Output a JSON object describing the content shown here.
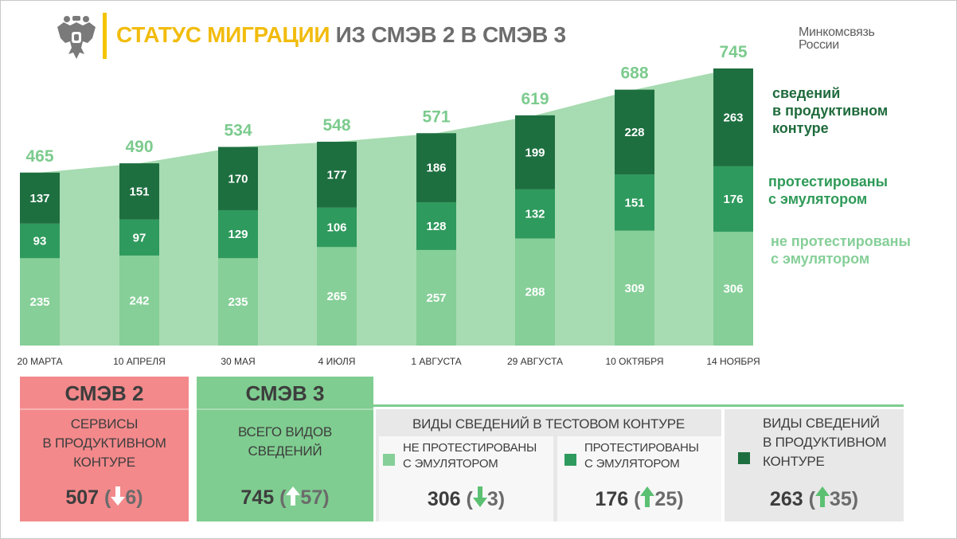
{
  "header": {
    "title_accent": "СТАТУС МИГРАЦИИ",
    "title_rest": "ИЗ СМЭВ 2 В СМЭВ 3",
    "ministry_line1": "Минкомсвязь",
    "ministry_line2": "России"
  },
  "colors": {
    "production": "#1e6f40",
    "tested": "#2f9a5d",
    "untested": "#86cf98",
    "area": "#a7dbb1",
    "total_label": "#7ccb8e",
    "smev2_box": "#f3898b",
    "smev3_box": "#7fcd90",
    "accent_title": "#f2bc0e",
    "arrow_up": "#5cc072",
    "arrow_down": "#5cc072"
  },
  "chart_data": {
    "type": "bar",
    "stacked": true,
    "categories": [
      "20 МАРТА",
      "10 АПРЕЛЯ",
      "30 МАЯ",
      "4 ИЮЛЯ",
      "1 АВГУСТА",
      "29 АВГУСТА",
      "10 ОКТЯБРЯ",
      "14 НОЯБРЯ"
    ],
    "series": [
      {
        "name": "не протестированы с эмулятором",
        "values": [
          235,
          242,
          235,
          265,
          257,
          288,
          309,
          306
        ]
      },
      {
        "name": "протестированы с эмулятором",
        "values": [
          93,
          97,
          129,
          106,
          128,
          132,
          151,
          176
        ]
      },
      {
        "name": "сведений в продуктивном контуре",
        "values": [
          137,
          151,
          170,
          177,
          186,
          199,
          228,
          263
        ]
      }
    ],
    "totals": [
      465,
      490,
      534,
      548,
      571,
      619,
      688,
      745
    ],
    "background_area": "totals",
    "title": "",
    "xlabel": "",
    "ylabel": "",
    "ylim": [
      0,
      760
    ],
    "grid": false,
    "legend_position": "right"
  },
  "legend": {
    "production_line1": "сведений",
    "production_line2": "в продуктивном",
    "production_line3": "контуре",
    "tested_line1": "протестированы",
    "tested_line2": "с эмулятором",
    "untested_line1": "не протестированы",
    "untested_line2": "с эмулятором"
  },
  "smev2": {
    "heading": "СМЭВ 2",
    "desc_line1": "СЕРВИСЫ",
    "desc_line2": "В ПРОДУКТИВНОМ",
    "desc_line3": "КОНТУРЕ",
    "value": "507",
    "change": "6",
    "change_direction": "down"
  },
  "smev3": {
    "heading": "СМЭВ 3",
    "desc_line1": "ВСЕГО ВИДОВ",
    "desc_line2": "СВЕДЕНИЙ",
    "value": "745",
    "change": "57",
    "change_direction": "up"
  },
  "test_contour": {
    "title": "ВИДЫ СВЕДЕНИЙ В ТЕСТОВОМ КОНТУРЕ",
    "untested": {
      "label_line1": "НЕ ПРОТЕСТИРОВАНЫ",
      "label_line2": "С ЭМУЛЯТОРОМ",
      "value": "306",
      "change": "3",
      "change_direction": "down"
    },
    "tested": {
      "label_line1": "ПРОТЕСТИРОВАНЫ",
      "label_line2": "С ЭМУЛЯТОРОМ",
      "value": "176",
      "change": "25",
      "change_direction": "up"
    }
  },
  "production_contour": {
    "label_line1": "ВИДЫ СВЕДЕНИЙ",
    "label_line2": "В ПРОДУКТИВНОМ",
    "label_line3": "КОНТУРЕ",
    "value": "263",
    "change": "35",
    "change_direction": "up"
  }
}
